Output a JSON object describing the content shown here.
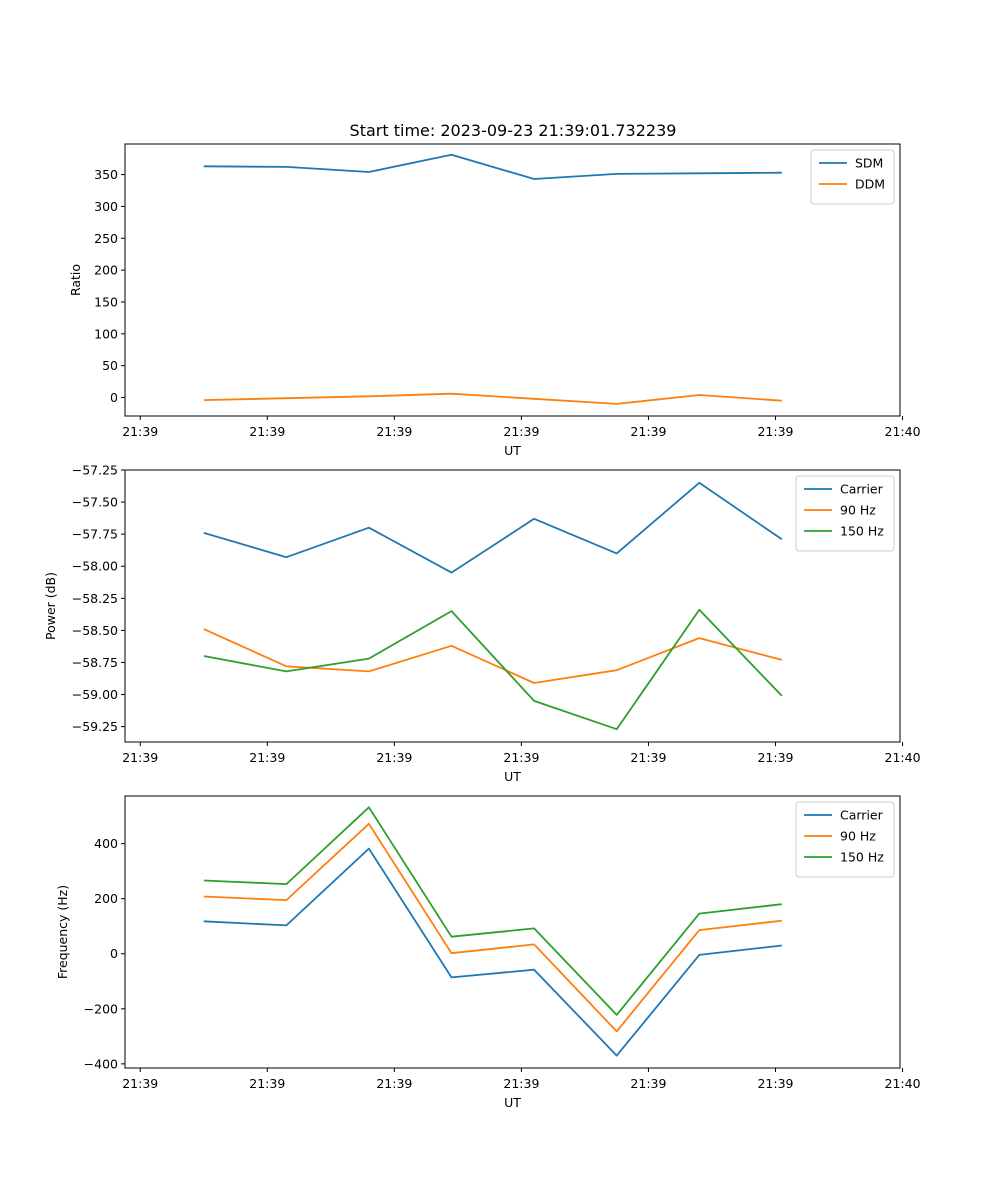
{
  "figure_title": "Start time: 2023-09-23 21:39:01.732239",
  "colors": {
    "blue": "#1f77b4",
    "orange": "#ff7f0e",
    "green": "#2ca02c"
  },
  "chart_data": [
    {
      "type": "line",
      "name": "ratio",
      "title": "Start time: 2023-09-23 21:39:01.732239",
      "xlabel": "UT",
      "ylabel": "Ratio",
      "x": [
        0.5,
        1.15,
        1.8,
        2.45,
        3.1,
        3.75,
        4.4,
        5.05
      ],
      "xlim": [
        -0.12,
        5.98
      ],
      "xticks": [
        0,
        1,
        2,
        3,
        4,
        5,
        6
      ],
      "xticklabels": [
        "21:39",
        "21:39",
        "21:39",
        "21:39",
        "21:39",
        "21:39",
        "21:40"
      ],
      "ylim": [
        -29,
        398
      ],
      "yticks": [
        0,
        50,
        100,
        150,
        200,
        250,
        300,
        350
      ],
      "yticklabels": [
        "0",
        "50",
        "100",
        "150",
        "200",
        "250",
        "300",
        "350"
      ],
      "legend": "top-right",
      "series": [
        {
          "name": "SDM",
          "color": "#1f77b4",
          "values": [
            363,
            362,
            354,
            381,
            343,
            351,
            352,
            353
          ]
        },
        {
          "name": "DDM",
          "color": "#ff7f0e",
          "values": [
            -4,
            -1,
            2,
            6,
            -2,
            -10,
            4,
            -5
          ]
        }
      ]
    },
    {
      "type": "line",
      "name": "power",
      "xlabel": "UT",
      "ylabel": "Power (dB)",
      "x": [
        0.5,
        1.15,
        1.8,
        2.45,
        3.1,
        3.75,
        4.4,
        5.05
      ],
      "xlim": [
        -0.12,
        5.98
      ],
      "xticks": [
        0,
        1,
        2,
        3,
        4,
        5,
        6
      ],
      "xticklabels": [
        "21:39",
        "21:39",
        "21:39",
        "21:39",
        "21:39",
        "21:39",
        "21:40"
      ],
      "ylim": [
        -59.37,
        -57.25
      ],
      "yticks": [
        -57.25,
        -57.5,
        -57.75,
        -58.0,
        -58.25,
        -58.5,
        -58.75,
        -59.0,
        -59.25
      ],
      "yticklabels": [
        "−57.25",
        "−57.50",
        "−57.75",
        "−58.00",
        "−58.25",
        "−58.50",
        "−58.75",
        "−59.00",
        "−59.25"
      ],
      "legend": "top-right",
      "series": [
        {
          "name": "Carrier",
          "color": "#1f77b4",
          "values": [
            -57.74,
            -57.93,
            -57.7,
            -58.05,
            -57.63,
            -57.9,
            -57.35,
            -57.79
          ]
        },
        {
          "name": "90 Hz",
          "color": "#ff7f0e",
          "values": [
            -58.49,
            -58.78,
            -58.82,
            -58.62,
            -58.91,
            -58.81,
            -58.56,
            -58.73
          ]
        },
        {
          "name": "150 Hz",
          "color": "#2ca02c",
          "values": [
            -58.7,
            -58.82,
            -58.72,
            -58.35,
            -59.05,
            -59.27,
            -58.34,
            -59.01
          ]
        }
      ]
    },
    {
      "type": "line",
      "name": "frequency",
      "xlabel": "UT",
      "ylabel": "Frequency (Hz)",
      "x": [
        0.5,
        1.15,
        1.8,
        2.45,
        3.1,
        3.75,
        4.4,
        5.05
      ],
      "xlim": [
        -0.12,
        5.98
      ],
      "xticks": [
        0,
        1,
        2,
        3,
        4,
        5,
        6
      ],
      "xticklabels": [
        "21:39",
        "21:39",
        "21:39",
        "21:39",
        "21:39",
        "21:39",
        "21:40"
      ],
      "ylim": [
        -415,
        573
      ],
      "yticks": [
        -400,
        -200,
        0,
        200,
        400
      ],
      "yticklabels": [
        "−400",
        "−200",
        "0",
        "200",
        "400"
      ],
      "legend": "top-right",
      "series": [
        {
          "name": "Carrier",
          "color": "#1f77b4",
          "values": [
            118,
            103,
            382,
            -86,
            -58,
            -370,
            -4,
            30
          ]
        },
        {
          "name": "90 Hz",
          "color": "#ff7f0e",
          "values": [
            208,
            195,
            472,
            2,
            34,
            -282,
            86,
            120
          ]
        },
        {
          "name": "150 Hz",
          "color": "#2ca02c",
          "values": [
            266,
            253,
            532,
            62,
            92,
            -222,
            146,
            180
          ]
        }
      ]
    }
  ]
}
